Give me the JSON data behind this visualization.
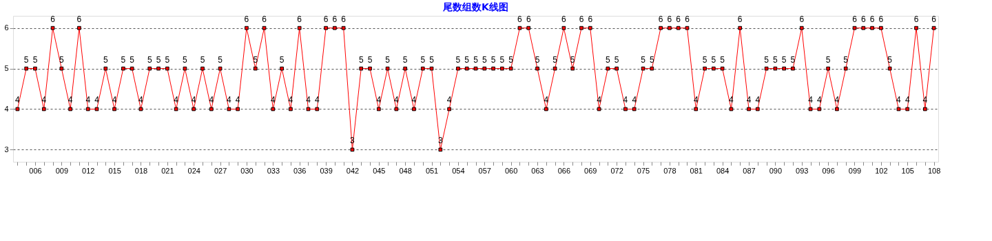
{
  "chart_data": {
    "type": "line",
    "title": "尾数组数K线图",
    "categories": [
      null,
      null,
      "006",
      null,
      null,
      "009",
      null,
      null,
      "012",
      null,
      null,
      "015",
      null,
      null,
      "018",
      null,
      null,
      "021",
      null,
      null,
      "024",
      null,
      null,
      "027",
      null,
      null,
      "030",
      null,
      null,
      "033",
      null,
      null,
      "036",
      null,
      null,
      "039",
      null,
      null,
      "042",
      null,
      null,
      "045",
      null,
      null,
      "048",
      null,
      null,
      "051",
      null,
      null,
      "054",
      null,
      null,
      "057",
      null,
      null,
      "060",
      null,
      null,
      "063",
      null,
      null,
      "066",
      null,
      null,
      "069",
      null,
      null,
      "072",
      null,
      null,
      "075",
      null,
      null,
      "078",
      null,
      null,
      "081",
      null,
      null,
      "084",
      null,
      null,
      "087",
      null,
      null,
      "090",
      null,
      null,
      "093",
      null,
      null,
      "096",
      null,
      null,
      "099",
      null,
      null,
      "102",
      null,
      null,
      "105",
      null,
      null,
      "108"
    ],
    "series": [
      {
        "color": "#ff0000",
        "values": [
          4,
          5,
          5,
          4,
          6,
          5,
          4,
          6,
          4,
          4,
          5,
          4,
          5,
          5,
          4,
          5,
          5,
          5,
          4,
          5,
          4,
          5,
          4,
          5,
          4,
          4,
          6,
          5,
          6,
          4,
          5,
          4,
          6,
          4,
          4,
          6,
          6,
          6,
          3,
          5,
          5,
          4,
          5,
          4,
          5,
          4,
          5,
          5,
          3,
          4,
          5,
          5,
          5,
          5,
          5,
          5,
          5,
          6,
          6,
          5,
          4,
          5,
          6,
          5,
          6,
          6,
          4,
          5,
          5,
          4,
          4,
          5,
          5,
          6,
          6,
          6,
          6,
          4,
          5,
          5,
          5,
          4,
          6,
          4,
          4,
          5,
          5,
          5,
          5,
          6,
          4,
          4,
          5,
          4,
          5,
          6,
          6,
          6,
          6,
          5,
          4,
          4,
          6,
          4,
          6
        ]
      }
    ],
    "ylim": [
      2.7,
      6.3
    ],
    "yticks": [
      3,
      4,
      5,
      6
    ],
    "grid": "y",
    "marker": "square",
    "line_style": "solid",
    "data_labels": true
  }
}
